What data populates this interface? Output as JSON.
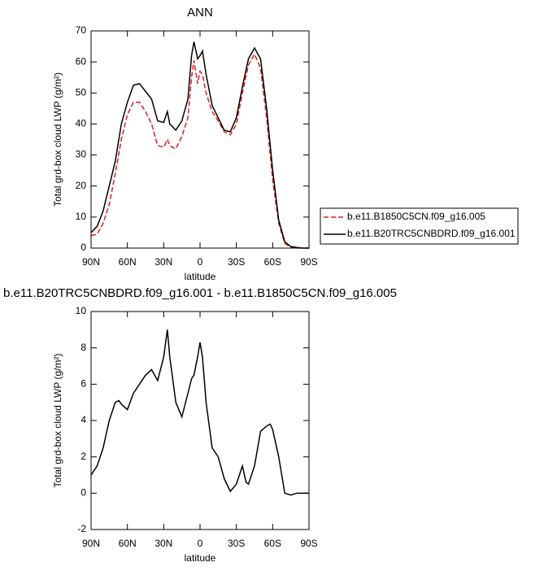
{
  "chart_data": [
    {
      "type": "line",
      "title": "ANN",
      "x_label": "latitude",
      "y_label": "Total grd-box cloud LWP (g/m²)",
      "x": [
        90,
        85,
        80,
        75,
        70,
        65,
        60,
        55,
        50,
        45,
        40,
        35,
        30,
        27,
        25,
        20,
        15,
        10,
        7,
        5,
        2,
        0,
        -2,
        -5,
        -10,
        -15,
        -20,
        -25,
        -30,
        -35,
        -40,
        -45,
        -50,
        -55,
        -60,
        -65,
        -70,
        -75,
        -80,
        -85,
        -90
      ],
      "series": [
        {
          "name": "b.e11.B1850C5CN.f09_g16.005",
          "color": "#e41a1c",
          "line_style": "dashed",
          "values": [
            4,
            4.5,
            8,
            14,
            24,
            35,
            43,
            47,
            47,
            44,
            40,
            33,
            32.5,
            35,
            33,
            32,
            36,
            42,
            55,
            60.5,
            53,
            57,
            56,
            50,
            44,
            41,
            37.5,
            36.5,
            40,
            50,
            59,
            62.5,
            58,
            42,
            22,
            8,
            1.5,
            0.3,
            0,
            0,
            0
          ]
        },
        {
          "name": "b.e11.B20TRC5CNBDRD.f09_g16.001",
          "color": "#000000",
          "line_style": "solid",
          "values": [
            5,
            7,
            12,
            20,
            28,
            40,
            47,
            52.5,
            53,
            50.5,
            48,
            41,
            40.5,
            44,
            40,
            38,
            41,
            48,
            62,
            66.5,
            61,
            62,
            63.5,
            56,
            46,
            42,
            38,
            37.5,
            42,
            52,
            61,
            64.5,
            61,
            45,
            25,
            9,
            2,
            0.5,
            0.2,
            0,
            0
          ]
        }
      ],
      "xlim": [
        90,
        -90
      ],
      "xticks": [
        {
          "value": 90,
          "label": "90N"
        },
        {
          "value": 60,
          "label": "60N"
        },
        {
          "value": 30,
          "label": "30N"
        },
        0,
        {
          "value": -30,
          "label": "30S"
        },
        {
          "value": -60,
          "label": "60S"
        },
        {
          "value": -90,
          "label": "90S"
        }
      ],
      "ylim": [
        0,
        70
      ],
      "yticks": [
        0,
        10,
        20,
        30,
        40,
        50,
        60,
        70
      ],
      "legend": "outside-right"
    },
    {
      "type": "line",
      "title": "b.e11.B20TRC5CNBDRD.f09_g16.001 - b.e11.B1850C5CN.f09_g16.005",
      "x_label": "latitude",
      "y_label": "Total grd-box cloud LWP (g/m²)",
      "x": [
        90,
        85,
        80,
        75,
        70,
        67,
        65,
        60,
        55,
        50,
        45,
        40,
        35,
        30,
        27,
        25,
        20,
        15,
        10,
        7,
        5,
        2,
        0,
        -2,
        -5,
        -10,
        -15,
        -20,
        -25,
        -30,
        -35,
        -38,
        -40,
        -45,
        -50,
        -55,
        -58,
        -60,
        -65,
        -70,
        -75,
        -80,
        -85,
        -90
      ],
      "values": [
        1,
        1.5,
        2.5,
        4,
        5,
        5.1,
        4.9,
        4.6,
        5.5,
        6,
        6.5,
        6.8,
        6.2,
        7.5,
        9,
        7.5,
        5,
        4.2,
        5.5,
        6.3,
        6.5,
        7.5,
        8.3,
        7.5,
        5,
        2.5,
        2,
        0.8,
        0.1,
        0.5,
        1.5,
        0.6,
        0.5,
        1.5,
        3.4,
        3.7,
        3.8,
        3.5,
        2,
        0,
        -0.1,
        0,
        0,
        0
      ],
      "color": "#000000",
      "xlim": [
        90,
        -90
      ],
      "xticks": [
        {
          "value": 90,
          "label": "90N"
        },
        {
          "value": 60,
          "label": "60N"
        },
        {
          "value": 30,
          "label": "30N"
        },
        0,
        {
          "value": -30,
          "label": "30S"
        },
        {
          "value": -60,
          "label": "60S"
        },
        {
          "value": -90,
          "label": "90S"
        }
      ],
      "ylim": [
        -2,
        10
      ],
      "yticks": [
        -2,
        0,
        2,
        4,
        6,
        8,
        10
      ]
    }
  ]
}
